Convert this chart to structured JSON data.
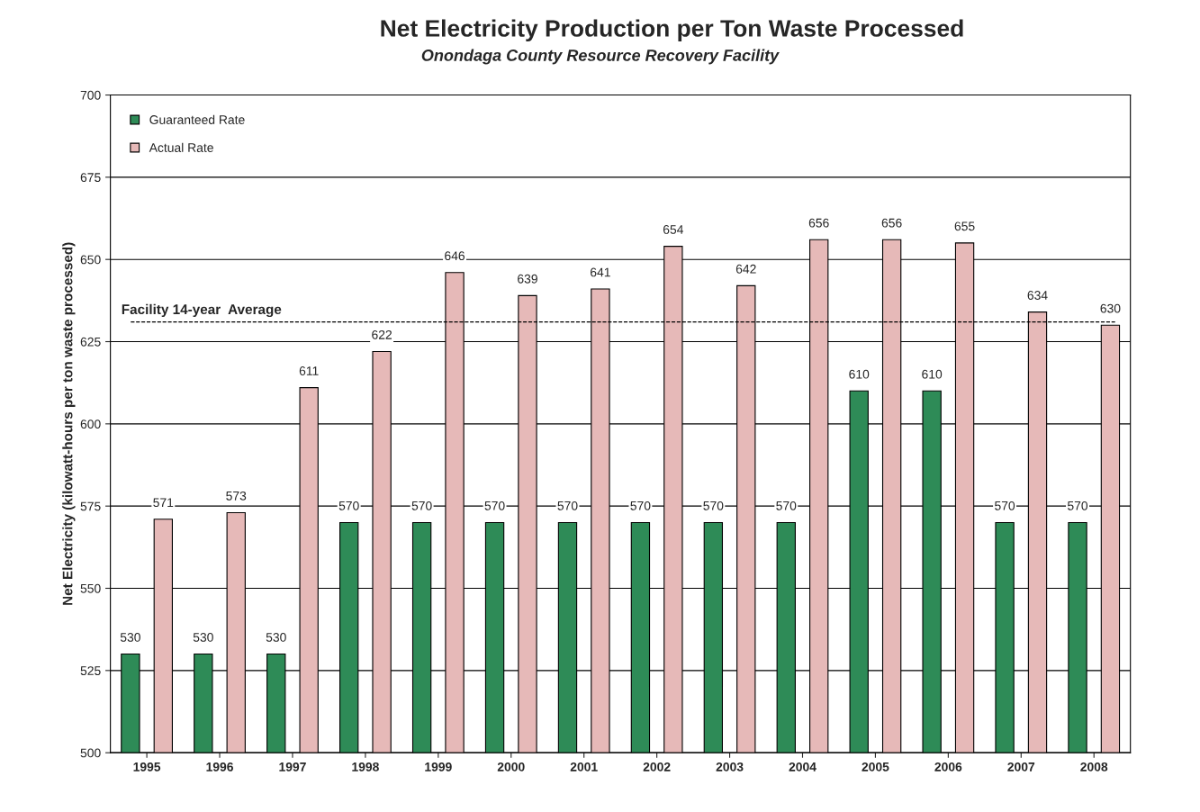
{
  "chart_data": {
    "type": "bar",
    "title": "Net Electricity Production per Ton Waste Processed",
    "subtitle": "Onondaga County Resource Recovery Facility",
    "ylabel": "Net Electricity (kilowatt-hours per ton waste processed)",
    "categories": [
      "1995",
      "1996",
      "1997",
      "1998",
      "1999",
      "2000",
      "2001",
      "2002",
      "2003",
      "2004",
      "2005",
      "2006",
      "2007",
      "2008"
    ],
    "series": [
      {
        "name": "Guaranteed Rate",
        "color": "#2e8b57",
        "values": [
          530,
          530,
          530,
          570,
          570,
          570,
          570,
          570,
          570,
          570,
          610,
          610,
          570,
          570
        ]
      },
      {
        "name": "Actual Rate",
        "color": "#e6b9b8",
        "values": [
          571,
          573,
          611,
          622,
          646,
          639,
          641,
          654,
          642,
          656,
          656,
          655,
          634,
          630
        ]
      }
    ],
    "ylim": [
      500,
      700
    ],
    "yticks": [
      500,
      525,
      550,
      575,
      600,
      625,
      650,
      675,
      700
    ],
    "grid": "y",
    "legend": "top left",
    "data_labels": true,
    "ref_lines": [
      {
        "axis": "y",
        "value": 631,
        "label": "Facility 14-year  Average",
        "color": "#000000",
        "line_style": "dashed"
      }
    ]
  }
}
